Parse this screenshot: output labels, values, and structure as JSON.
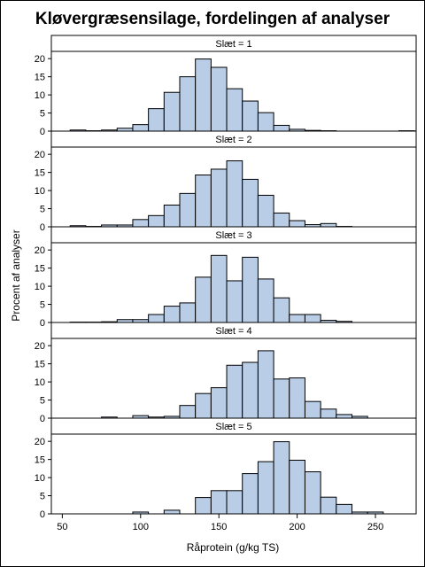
{
  "chart_data": {
    "type": "bar",
    "title": "Kløvergræsensilage, fordelingen af analyser",
    "xlabel": "Råprotein (g/kg TS)",
    "ylabel": "Procent af analyser",
    "xlim": [
      43,
      276
    ],
    "ylim": [
      0,
      22
    ],
    "bin_width": 10,
    "x_ticks": [
      50,
      100,
      150,
      200,
      250
    ],
    "y_ticks": [
      0,
      5,
      10,
      15,
      20
    ],
    "bar_color": "#b9cde6",
    "bar_edge_color": "#000000",
    "grid": false,
    "panels": [
      {
        "label": "Slæt = 1",
        "bins": [
          {
            "x": 60,
            "value": 0.3
          },
          {
            "x": 70,
            "value": 0.1
          },
          {
            "x": 80,
            "value": 0.3
          },
          {
            "x": 90,
            "value": 0.8
          },
          {
            "x": 100,
            "value": 1.8
          },
          {
            "x": 110,
            "value": 6.2
          },
          {
            "x": 120,
            "value": 10.7
          },
          {
            "x": 130,
            "value": 15.0
          },
          {
            "x": 140,
            "value": 19.9
          },
          {
            "x": 150,
            "value": 17.6
          },
          {
            "x": 160,
            "value": 11.7
          },
          {
            "x": 170,
            "value": 8.3
          },
          {
            "x": 180,
            "value": 5.1
          },
          {
            "x": 190,
            "value": 1.6
          },
          {
            "x": 200,
            "value": 0.5
          },
          {
            "x": 210,
            "value": 0.2
          },
          {
            "x": 220,
            "value": 0.1
          },
          {
            "x": 270,
            "value": 0.1
          }
        ]
      },
      {
        "label": "Slæt = 2",
        "bins": [
          {
            "x": 60,
            "value": 0.3
          },
          {
            "x": 70,
            "value": 0.1
          },
          {
            "x": 80,
            "value": 0.5
          },
          {
            "x": 90,
            "value": 0.5
          },
          {
            "x": 100,
            "value": 2.0
          },
          {
            "x": 110,
            "value": 3.1
          },
          {
            "x": 120,
            "value": 6.0
          },
          {
            "x": 130,
            "value": 9.2
          },
          {
            "x": 140,
            "value": 14.3
          },
          {
            "x": 150,
            "value": 15.9
          },
          {
            "x": 160,
            "value": 18.2
          },
          {
            "x": 170,
            "value": 13.1
          },
          {
            "x": 180,
            "value": 8.7
          },
          {
            "x": 190,
            "value": 3.8
          },
          {
            "x": 200,
            "value": 1.7
          },
          {
            "x": 210,
            "value": 0.6
          },
          {
            "x": 220,
            "value": 0.9
          },
          {
            "x": 230,
            "value": 0.1
          }
        ]
      },
      {
        "label": "Slæt = 3",
        "bins": [
          {
            "x": 60,
            "value": 0.1
          },
          {
            "x": 70,
            "value": 0.1
          },
          {
            "x": 80,
            "value": 0.2
          },
          {
            "x": 90,
            "value": 0.8
          },
          {
            "x": 100,
            "value": 0.8
          },
          {
            "x": 110,
            "value": 2.2
          },
          {
            "x": 120,
            "value": 4.5
          },
          {
            "x": 130,
            "value": 5.4
          },
          {
            "x": 140,
            "value": 12.5
          },
          {
            "x": 150,
            "value": 18.5
          },
          {
            "x": 160,
            "value": 11.5
          },
          {
            "x": 170,
            "value": 18.0
          },
          {
            "x": 180,
            "value": 12.0
          },
          {
            "x": 190,
            "value": 6.8
          },
          {
            "x": 200,
            "value": 2.2
          },
          {
            "x": 210,
            "value": 2.2
          },
          {
            "x": 220,
            "value": 0.6
          },
          {
            "x": 230,
            "value": 0.3
          }
        ]
      },
      {
        "label": "Slæt = 4",
        "bins": [
          {
            "x": 80,
            "value": 0.3
          },
          {
            "x": 100,
            "value": 0.7
          },
          {
            "x": 110,
            "value": 0.3
          },
          {
            "x": 120,
            "value": 0.5
          },
          {
            "x": 130,
            "value": 3.5
          },
          {
            "x": 140,
            "value": 6.8
          },
          {
            "x": 150,
            "value": 8.4
          },
          {
            "x": 160,
            "value": 14.6
          },
          {
            "x": 170,
            "value": 15.4
          },
          {
            "x": 180,
            "value": 18.6
          },
          {
            "x": 190,
            "value": 10.8
          },
          {
            "x": 200,
            "value": 11.1
          },
          {
            "x": 210,
            "value": 4.6
          },
          {
            "x": 220,
            "value": 2.5
          },
          {
            "x": 230,
            "value": 1.0
          },
          {
            "x": 240,
            "value": 0.5
          }
        ]
      },
      {
        "label": "Slæt = 5",
        "bins": [
          {
            "x": 100,
            "value": 0.5
          },
          {
            "x": 120,
            "value": 1.0
          },
          {
            "x": 140,
            "value": 4.5
          },
          {
            "x": 150,
            "value": 6.4
          },
          {
            "x": 160,
            "value": 6.4
          },
          {
            "x": 170,
            "value": 11.1
          },
          {
            "x": 180,
            "value": 14.4
          },
          {
            "x": 190,
            "value": 19.9
          },
          {
            "x": 200,
            "value": 14.8
          },
          {
            "x": 210,
            "value": 11.6
          },
          {
            "x": 220,
            "value": 4.6
          },
          {
            "x": 230,
            "value": 2.6
          },
          {
            "x": 240,
            "value": 0.5
          },
          {
            "x": 250,
            "value": 0.5
          }
        ]
      }
    ]
  }
}
